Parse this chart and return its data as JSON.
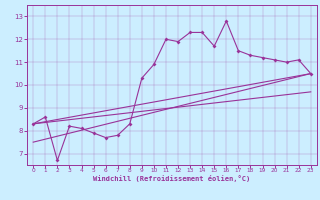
{
  "xlabel": "Windchill (Refroidissement éolien,°C)",
  "background_color": "#cceeff",
  "line_color": "#993399",
  "xlim": [
    -0.5,
    23.5
  ],
  "ylim": [
    6.5,
    13.5
  ],
  "yticks": [
    7,
    8,
    9,
    10,
    11,
    12,
    13
  ],
  "xticks": [
    0,
    1,
    2,
    3,
    4,
    5,
    6,
    7,
    8,
    9,
    10,
    11,
    12,
    13,
    14,
    15,
    16,
    17,
    18,
    19,
    20,
    21,
    22,
    23
  ],
  "line1_x": [
    0,
    1,
    2,
    3,
    4,
    5,
    6,
    7,
    8,
    9,
    10,
    11,
    12,
    13,
    14,
    15,
    16,
    17,
    18,
    19,
    20,
    21,
    22,
    23
  ],
  "line1_y": [
    8.3,
    8.6,
    6.7,
    8.2,
    8.1,
    7.9,
    7.7,
    7.8,
    8.3,
    10.3,
    10.9,
    12.0,
    11.9,
    12.3,
    12.3,
    11.7,
    12.8,
    11.5,
    11.3,
    11.2,
    11.1,
    11.0,
    11.1,
    10.5
  ],
  "line2_x": [
    0,
    23
  ],
  "line2_y": [
    7.5,
    10.5
  ],
  "line3_x": [
    0,
    23
  ],
  "line3_y": [
    8.3,
    9.7
  ],
  "line4_x": [
    0,
    23
  ],
  "line4_y": [
    8.3,
    10.5
  ]
}
